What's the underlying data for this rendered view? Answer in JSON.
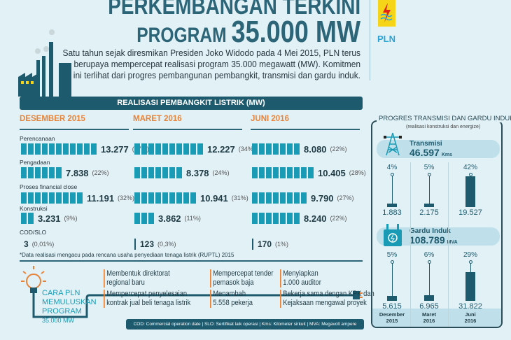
{
  "header": {
    "title_line1": "PERKEMBANGAN TERKINI",
    "title_line2a": "PROGRAM",
    "title_line2b": "35.000 MW",
    "logo_text": "PLN",
    "intro_lines": [
      "Satu tahun sejak diresmikan Presiden Joko Widodo pada 4 Mei 2015, PLN terus",
      "berupaya mempercepat realisasi program 35.000 megawatt (MW). Komitmen",
      "ini terlihat dari progres pembangunan pembangkit, transmisi dan gardu induk."
    ]
  },
  "colors": {
    "accent": "#e8843a",
    "bar": "#1a9bb5",
    "dark": "#1d5a6e",
    "background": "#e2f1f6"
  },
  "chart_data": [
    {
      "type": "bar",
      "title": "REALISASI PEMBANGKIT LISTRIK (MW)",
      "categories": [
        "Perencanaan",
        "Pengadaan",
        "Proses financial close",
        "Konstruksi",
        "COD/SLO"
      ],
      "series": [
        {
          "name": "DESEMBER 2015",
          "values": [
            13277,
            7838,
            11191,
            3231,
            3
          ],
          "labels": [
            "13.277",
            "7.838",
            "11.191",
            "3.231",
            "3"
          ],
          "pcts": [
            "(37%)",
            "(22%)",
            "(32%)",
            "(9%)",
            "(0,01%)"
          ]
        },
        {
          "name": "MARET 2016",
          "values": [
            12227,
            8378,
            10941,
            3862,
            123
          ],
          "labels": [
            "12.227",
            "8.378",
            "10.941",
            "3.862",
            "123"
          ],
          "pcts": [
            "(34%)",
            "(24%)",
            "(31%)",
            "(11%)",
            "(0,3%)"
          ]
        },
        {
          "name": "JUNI 2016",
          "values": [
            8080,
            10405,
            9790,
            8240,
            170
          ],
          "labels": [
            "8.080",
            "10.405",
            "9.790",
            "8.240",
            "170"
          ],
          "pcts": [
            "(22%)",
            "(28%)",
            "(27%)",
            "(22%)",
            "(1%)"
          ]
        }
      ]
    },
    {
      "type": "bar",
      "title": "PROGRES TRANSMISI DAN GARDU INDUK",
      "subtitle": "(realisasi konstruksi dan energize)",
      "categories": [
        "Desember 2015",
        "Maret 2016",
        "Juni 2016"
      ],
      "series": [
        {
          "name": "Transmisi",
          "total": "46.597",
          "unit": "Kms",
          "percent": [
            4,
            5,
            42
          ],
          "pct_labels": [
            "4%",
            "5%",
            "42%"
          ],
          "labels": [
            "1.883",
            "2.175",
            "19.527"
          ]
        },
        {
          "name": "Gardu Induk",
          "total": "108.789",
          "unit": "MVA",
          "percent": [
            5,
            6,
            29
          ],
          "pct_labels": [
            "5%",
            "6%",
            "29%"
          ],
          "labels": [
            "5.615",
            "6.965",
            "31.822"
          ]
        }
      ]
    }
  ],
  "months_short": [
    [
      "Desember",
      "2015"
    ],
    [
      "Maret",
      "2016"
    ],
    [
      "Juni",
      "2016"
    ]
  ],
  "footnote": "*Data realisasi mengacu pada rencana usaha penyediaan tenaga listrik (RUPTL) 2015",
  "cara": {
    "title_lines": [
      "CARA PLN",
      "MEMULUSKAN",
      "PROGRAM",
      "35.000 MW"
    ],
    "items": [
      [
        "Membentuk direktorat",
        "regional baru"
      ],
      [
        "Mempercepat tender",
        "pemasok baja"
      ],
      [
        "Menyiapkan",
        "1.000 auditor"
      ],
      [
        "Mempercepat penyelesaian",
        "kontrak jual beli tenaga listrik"
      ],
      [
        "Menambah",
        "5.558 pekerja"
      ],
      [
        "Bekerja sama dengan KPK dan",
        "Kejaksaan mengawal proyek"
      ]
    ]
  },
  "legend": "COD: Commercial operation date | SLO: Sertifikat laik operasi | Kms: Kilometer sirkuit | MVA: Megavolt ampere"
}
